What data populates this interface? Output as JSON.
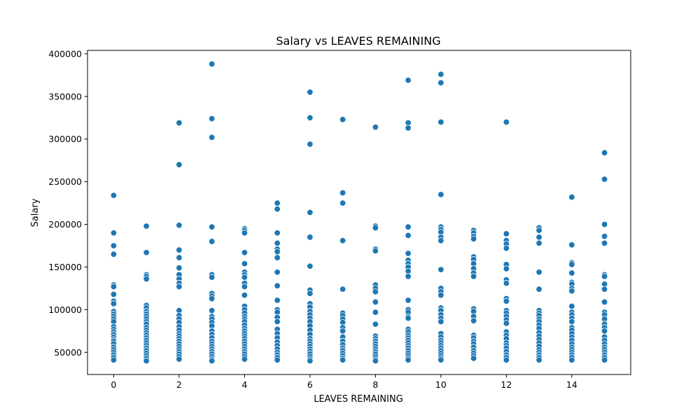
{
  "chart_data": {
    "type": "scatter",
    "title": "Salary vs LEAVES REMAINING",
    "xlabel": "LEAVES REMAINING",
    "ylabel": "Salary",
    "xlim": [
      -0.8,
      15.8
    ],
    "ylim": [
      24000,
      404000
    ],
    "x_ticks": [
      0,
      2,
      4,
      6,
      8,
      10,
      12,
      14
    ],
    "x_tick_labels": [
      "0",
      "2",
      "4",
      "6",
      "8",
      "10",
      "12",
      "14"
    ],
    "y_ticks": [
      50000,
      100000,
      150000,
      200000,
      250000,
      300000,
      350000,
      400000
    ],
    "y_tick_labels": [
      "50000",
      "100000",
      "150000",
      "200000",
      "250000",
      "300000",
      "350000",
      "400000"
    ],
    "grid": false,
    "legend": "none",
    "point_color": "#1f77b4",
    "points": [
      [
        0,
        234000
      ],
      [
        0,
        190000
      ],
      [
        0,
        175000
      ],
      [
        0,
        165000
      ],
      [
        0,
        129000
      ],
      [
        0,
        127000
      ],
      [
        0,
        118000
      ],
      [
        0,
        110000
      ],
      [
        0,
        107000
      ],
      [
        0,
        98000
      ],
      [
        0,
        95000
      ],
      [
        0,
        92000
      ],
      [
        0,
        89000
      ],
      [
        0,
        86000
      ],
      [
        0,
        80000
      ],
      [
        0,
        77000
      ],
      [
        0,
        74000
      ],
      [
        0,
        71000
      ],
      [
        0,
        68000
      ],
      [
        0,
        65000
      ],
      [
        0,
        63000
      ],
      [
        0,
        60000
      ],
      [
        0,
        56000
      ],
      [
        0,
        53000
      ],
      [
        0,
        50000
      ],
      [
        0,
        47000
      ],
      [
        0,
        44000
      ],
      [
        0,
        41000
      ],
      [
        1,
        198000
      ],
      [
        1,
        167000
      ],
      [
        1,
        141000
      ],
      [
        1,
        139000
      ],
      [
        1,
        136000
      ],
      [
        1,
        105000
      ],
      [
        1,
        102000
      ],
      [
        1,
        98000
      ],
      [
        1,
        95000
      ],
      [
        1,
        92000
      ],
      [
        1,
        89000
      ],
      [
        1,
        86000
      ],
      [
        1,
        83000
      ],
      [
        1,
        79000
      ],
      [
        1,
        76000
      ],
      [
        1,
        73000
      ],
      [
        1,
        70000
      ],
      [
        1,
        67000
      ],
      [
        1,
        64000
      ],
      [
        1,
        61000
      ],
      [
        1,
        58000
      ],
      [
        1,
        55000
      ],
      [
        1,
        52000
      ],
      [
        1,
        49000
      ],
      [
        1,
        46000
      ],
      [
        1,
        43000
      ],
      [
        1,
        40000
      ],
      [
        2,
        319000
      ],
      [
        2,
        270000
      ],
      [
        2,
        199000
      ],
      [
        2,
        170000
      ],
      [
        2,
        161000
      ],
      [
        2,
        149000
      ],
      [
        2,
        141000
      ],
      [
        2,
        136000
      ],
      [
        2,
        131000
      ],
      [
        2,
        127000
      ],
      [
        2,
        99000
      ],
      [
        2,
        93000
      ],
      [
        2,
        89000
      ],
      [
        2,
        85000
      ],
      [
        2,
        80000
      ],
      [
        2,
        76000
      ],
      [
        2,
        72000
      ],
      [
        2,
        69000
      ],
      [
        2,
        66000
      ],
      [
        2,
        63000
      ],
      [
        2,
        60000
      ],
      [
        2,
        57000
      ],
      [
        2,
        54000
      ],
      [
        2,
        51000
      ],
      [
        2,
        48000
      ],
      [
        2,
        45000
      ],
      [
        2,
        42000
      ],
      [
        3,
        388000
      ],
      [
        3,
        324000
      ],
      [
        3,
        302000
      ],
      [
        3,
        197000
      ],
      [
        3,
        180000
      ],
      [
        3,
        141000
      ],
      [
        3,
        138000
      ],
      [
        3,
        119000
      ],
      [
        3,
        116000
      ],
      [
        3,
        113000
      ],
      [
        3,
        99000
      ],
      [
        3,
        92000
      ],
      [
        3,
        89000
      ],
      [
        3,
        85000
      ],
      [
        3,
        81000
      ],
      [
        3,
        75000
      ],
      [
        3,
        71000
      ],
      [
        3,
        67000
      ],
      [
        3,
        63000
      ],
      [
        3,
        60000
      ],
      [
        3,
        57000
      ],
      [
        3,
        54000
      ],
      [
        3,
        51000
      ],
      [
        3,
        48000
      ],
      [
        3,
        45000
      ],
      [
        3,
        42000
      ],
      [
        3,
        40000
      ],
      [
        4,
        195000
      ],
      [
        4,
        193000
      ],
      [
        4,
        190000
      ],
      [
        4,
        167000
      ],
      [
        4,
        154000
      ],
      [
        4,
        144000
      ],
      [
        4,
        141000
      ],
      [
        4,
        138000
      ],
      [
        4,
        131000
      ],
      [
        4,
        127000
      ],
      [
        4,
        117000
      ],
      [
        4,
        104000
      ],
      [
        4,
        100000
      ],
      [
        4,
        96000
      ],
      [
        4,
        92000
      ],
      [
        4,
        89000
      ],
      [
        4,
        86000
      ],
      [
        4,
        82000
      ],
      [
        4,
        78000
      ],
      [
        4,
        75000
      ],
      [
        4,
        72000
      ],
      [
        4,
        69000
      ],
      [
        4,
        66000
      ],
      [
        4,
        63000
      ],
      [
        4,
        60000
      ],
      [
        4,
        57000
      ],
      [
        4,
        54000
      ],
      [
        4,
        51000
      ],
      [
        4,
        48000
      ],
      [
        4,
        45000
      ],
      [
        4,
        42000
      ],
      [
        5,
        225000
      ],
      [
        5,
        218000
      ],
      [
        5,
        190000
      ],
      [
        5,
        178000
      ],
      [
        5,
        171000
      ],
      [
        5,
        168000
      ],
      [
        5,
        161000
      ],
      [
        5,
        144000
      ],
      [
        5,
        128000
      ],
      [
        5,
        111000
      ],
      [
        5,
        100000
      ],
      [
        5,
        97000
      ],
      [
        5,
        91000
      ],
      [
        5,
        86000
      ],
      [
        5,
        77000
      ],
      [
        5,
        72000
      ],
      [
        5,
        67000
      ],
      [
        5,
        62000
      ],
      [
        5,
        58000
      ],
      [
        5,
        54000
      ],
      [
        5,
        50000
      ],
      [
        5,
        47000
      ],
      [
        5,
        44000
      ],
      [
        5,
        41000
      ],
      [
        6,
        355000
      ],
      [
        6,
        325000
      ],
      [
        6,
        294000
      ],
      [
        6,
        214000
      ],
      [
        6,
        185000
      ],
      [
        6,
        151000
      ],
      [
        6,
        123000
      ],
      [
        6,
        119000
      ],
      [
        6,
        107000
      ],
      [
        6,
        103000
      ],
      [
        6,
        98000
      ],
      [
        6,
        94000
      ],
      [
        6,
        90000
      ],
      [
        6,
        86000
      ],
      [
        6,
        81000
      ],
      [
        6,
        76000
      ],
      [
        6,
        71000
      ],
      [
        6,
        66000
      ],
      [
        6,
        63000
      ],
      [
        6,
        60000
      ],
      [
        6,
        57000
      ],
      [
        6,
        54000
      ],
      [
        6,
        51000
      ],
      [
        6,
        48000
      ],
      [
        6,
        45000
      ],
      [
        6,
        42000
      ],
      [
        6,
        40000
      ],
      [
        7,
        323000
      ],
      [
        7,
        237000
      ],
      [
        7,
        225000
      ],
      [
        7,
        181000
      ],
      [
        7,
        124000
      ],
      [
        7,
        96000
      ],
      [
        7,
        93000
      ],
      [
        7,
        89000
      ],
      [
        7,
        85000
      ],
      [
        7,
        79000
      ],
      [
        7,
        75000
      ],
      [
        7,
        68000
      ],
      [
        7,
        63000
      ],
      [
        7,
        59000
      ],
      [
        7,
        55000
      ],
      [
        7,
        52000
      ],
      [
        7,
        49000
      ],
      [
        7,
        46000
      ],
      [
        7,
        43000
      ],
      [
        7,
        41000
      ],
      [
        8,
        314000
      ],
      [
        8,
        198000
      ],
      [
        8,
        196000
      ],
      [
        8,
        171000
      ],
      [
        8,
        169000
      ],
      [
        8,
        129000
      ],
      [
        8,
        125000
      ],
      [
        8,
        121000
      ],
      [
        8,
        109000
      ],
      [
        8,
        97000
      ],
      [
        8,
        83000
      ],
      [
        8,
        69000
      ],
      [
        8,
        66000
      ],
      [
        8,
        63000
      ],
      [
        8,
        60000
      ],
      [
        8,
        57000
      ],
      [
        8,
        54000
      ],
      [
        8,
        51000
      ],
      [
        8,
        48000
      ],
      [
        8,
        45000
      ],
      [
        8,
        42000
      ],
      [
        8,
        40000
      ],
      [
        9,
        369000
      ],
      [
        9,
        319000
      ],
      [
        9,
        313000
      ],
      [
        9,
        197000
      ],
      [
        9,
        187000
      ],
      [
        9,
        166000
      ],
      [
        9,
        158000
      ],
      [
        9,
        154000
      ],
      [
        9,
        150000
      ],
      [
        9,
        145000
      ],
      [
        9,
        139000
      ],
      [
        9,
        111000
      ],
      [
        9,
        100000
      ],
      [
        9,
        97000
      ],
      [
        9,
        92000
      ],
      [
        9,
        90000
      ],
      [
        9,
        77000
      ],
      [
        9,
        74000
      ],
      [
        9,
        70000
      ],
      [
        9,
        67000
      ],
      [
        9,
        64000
      ],
      [
        9,
        61000
      ],
      [
        9,
        58000
      ],
      [
        9,
        55000
      ],
      [
        9,
        52000
      ],
      [
        9,
        49000
      ],
      [
        9,
        46000
      ],
      [
        9,
        43000
      ],
      [
        9,
        41000
      ],
      [
        10,
        376000
      ],
      [
        10,
        366000
      ],
      [
        10,
        320000
      ],
      [
        10,
        235000
      ],
      [
        10,
        197000
      ],
      [
        10,
        194000
      ],
      [
        10,
        191000
      ],
      [
        10,
        185000
      ],
      [
        10,
        181000
      ],
      [
        10,
        147000
      ],
      [
        10,
        125000
      ],
      [
        10,
        121000
      ],
      [
        10,
        117000
      ],
      [
        10,
        102000
      ],
      [
        10,
        99000
      ],
      [
        10,
        94000
      ],
      [
        10,
        90000
      ],
      [
        10,
        86000
      ],
      [
        10,
        72000
      ],
      [
        10,
        68000
      ],
      [
        10,
        64000
      ],
      [
        10,
        61000
      ],
      [
        10,
        58000
      ],
      [
        10,
        55000
      ],
      [
        10,
        52000
      ],
      [
        10,
        49000
      ],
      [
        10,
        46000
      ],
      [
        10,
        43000
      ],
      [
        10,
        41000
      ],
      [
        11,
        193000
      ],
      [
        11,
        190000
      ],
      [
        11,
        186000
      ],
      [
        11,
        183000
      ],
      [
        11,
        162000
      ],
      [
        11,
        159000
      ],
      [
        11,
        154000
      ],
      [
        11,
        148000
      ],
      [
        11,
        143000
      ],
      [
        11,
        139000
      ],
      [
        11,
        101000
      ],
      [
        11,
        98000
      ],
      [
        11,
        92000
      ],
      [
        11,
        87000
      ],
      [
        11,
        70000
      ],
      [
        11,
        67000
      ],
      [
        11,
        63000
      ],
      [
        11,
        60000
      ],
      [
        11,
        56000
      ],
      [
        11,
        52000
      ],
      [
        11,
        49000
      ],
      [
        11,
        46000
      ],
      [
        11,
        43000
      ],
      [
        12,
        320000
      ],
      [
        12,
        189000
      ],
      [
        12,
        181000
      ],
      [
        12,
        177000
      ],
      [
        12,
        172000
      ],
      [
        12,
        153000
      ],
      [
        12,
        148000
      ],
      [
        12,
        135000
      ],
      [
        12,
        131000
      ],
      [
        12,
        113000
      ],
      [
        12,
        110000
      ],
      [
        12,
        99000
      ],
      [
        12,
        96000
      ],
      [
        12,
        92000
      ],
      [
        12,
        88000
      ],
      [
        12,
        84000
      ],
      [
        12,
        74000
      ],
      [
        12,
        70000
      ],
      [
        12,
        66000
      ],
      [
        12,
        61000
      ],
      [
        12,
        58000
      ],
      [
        12,
        55000
      ],
      [
        12,
        51000
      ],
      [
        12,
        47000
      ],
      [
        12,
        44000
      ],
      [
        12,
        41000
      ],
      [
        13,
        196000
      ],
      [
        13,
        193000
      ],
      [
        13,
        185000
      ],
      [
        13,
        178000
      ],
      [
        13,
        144000
      ],
      [
        13,
        124000
      ],
      [
        13,
        99000
      ],
      [
        13,
        96000
      ],
      [
        13,
        93000
      ],
      [
        13,
        89000
      ],
      [
        13,
        86000
      ],
      [
        13,
        82000
      ],
      [
        13,
        78000
      ],
      [
        13,
        73000
      ],
      [
        13,
        69000
      ],
      [
        13,
        65000
      ],
      [
        13,
        61000
      ],
      [
        13,
        57000
      ],
      [
        13,
        53000
      ],
      [
        13,
        50000
      ],
      [
        13,
        47000
      ],
      [
        13,
        44000
      ],
      [
        13,
        41000
      ],
      [
        14,
        232000
      ],
      [
        14,
        176000
      ],
      [
        14,
        155000
      ],
      [
        14,
        153000
      ],
      [
        14,
        143000
      ],
      [
        14,
        132000
      ],
      [
        14,
        130000
      ],
      [
        14,
        125000
      ],
      [
        14,
        122000
      ],
      [
        14,
        104000
      ],
      [
        14,
        97000
      ],
      [
        14,
        94000
      ],
      [
        14,
        90000
      ],
      [
        14,
        86000
      ],
      [
        14,
        79000
      ],
      [
        14,
        76000
      ],
      [
        14,
        72000
      ],
      [
        14,
        68000
      ],
      [
        14,
        64000
      ],
      [
        14,
        60000
      ],
      [
        14,
        56000
      ],
      [
        14,
        53000
      ],
      [
        14,
        50000
      ],
      [
        14,
        47000
      ],
      [
        14,
        44000
      ],
      [
        14,
        41000
      ],
      [
        15,
        284000
      ],
      [
        15,
        253000
      ],
      [
        15,
        200000
      ],
      [
        15,
        186000
      ],
      [
        15,
        178000
      ],
      [
        15,
        141000
      ],
      [
        15,
        139000
      ],
      [
        15,
        130000
      ],
      [
        15,
        124000
      ],
      [
        15,
        109000
      ],
      [
        15,
        97000
      ],
      [
        15,
        94000
      ],
      [
        15,
        89000
      ],
      [
        15,
        83000
      ],
      [
        15,
        79000
      ],
      [
        15,
        75000
      ],
      [
        15,
        68000
      ],
      [
        15,
        64000
      ],
      [
        15,
        60000
      ],
      [
        15,
        56000
      ],
      [
        15,
        53000
      ],
      [
        15,
        50000
      ],
      [
        15,
        47000
      ],
      [
        15,
        44000
      ],
      [
        15,
        41000
      ]
    ]
  }
}
